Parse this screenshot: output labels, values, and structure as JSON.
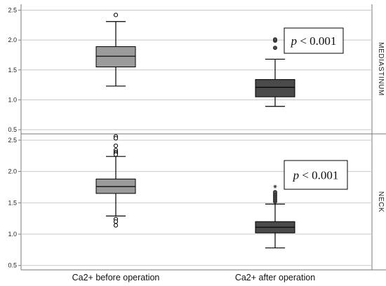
{
  "chart_data": {
    "type": "boxplot",
    "categories": [
      "Ca2+ before operation",
      "Ca2+ after operation"
    ],
    "y_ticks": [
      "0.5",
      "1.0",
      "1.5",
      "2.0",
      "2.5"
    ],
    "colors": {
      "before": "#9b9b9b",
      "after": "#4a4a4a",
      "grid": "#c8c8c8",
      "frame": "#7a7a7a"
    },
    "panels": [
      {
        "label": "MEDIASTINUM",
        "ylim": [
          0.43,
          2.6
        ],
        "p_value": {
          "symbol": "p",
          "text": " < 0.001"
        },
        "boxes": [
          {
            "category": "Ca2+ before operation",
            "min": 1.23,
            "q1": 1.55,
            "median": 1.73,
            "q3": 1.89,
            "max": 2.31,
            "outliers": [
              {
                "value": 2.42,
                "style": "hollow"
              }
            ]
          },
          {
            "category": "Ca2+ after operation",
            "min": 0.89,
            "q1": 1.05,
            "median": 1.21,
            "q3": 1.34,
            "max": 1.68,
            "outliers": [
              {
                "value": 1.87,
                "style": "filled"
              },
              {
                "value": 1.99,
                "style": "filled"
              },
              {
                "value": 2.01,
                "style": "filled"
              }
            ]
          }
        ]
      },
      {
        "label": "NECK",
        "ylim": [
          0.43,
          2.6
        ],
        "p_value": {
          "symbol": "p",
          "text": " < 0.001"
        },
        "boxes": [
          {
            "category": "Ca2+ before operation",
            "min": 1.29,
            "q1": 1.65,
            "median": 1.76,
            "q3": 1.88,
            "max": 2.24,
            "outliers": [
              {
                "value": 2.56,
                "style": "hollow"
              },
              {
                "value": 2.53,
                "style": "hollow"
              },
              {
                "value": 2.41,
                "style": "hollow"
              },
              {
                "value": 2.34,
                "style": "hollow"
              },
              {
                "value": 2.31,
                "style": "hollow"
              },
              {
                "value": 2.29,
                "style": "hollow"
              },
              {
                "value": 2.27,
                "style": "hollow"
              },
              {
                "value": 1.24,
                "style": "hollow"
              },
              {
                "value": 1.2,
                "style": "hollow"
              },
              {
                "value": 1.14,
                "style": "hollow"
              }
            ]
          },
          {
            "category": "Ca2+ after operation",
            "min": 0.78,
            "q1": 1.02,
            "median": 1.11,
            "q3": 1.2,
            "max": 1.48,
            "outliers": [
              {
                "value": 1.52,
                "style": "filled"
              },
              {
                "value": 1.55,
                "style": "filled"
              },
              {
                "value": 1.58,
                "style": "filled"
              },
              {
                "value": 1.61,
                "style": "filled"
              },
              {
                "value": 1.64,
                "style": "filled"
              },
              {
                "value": 1.67,
                "style": "filled"
              },
              {
                "value": 1.76,
                "style": "star"
              }
            ]
          }
        ]
      }
    ],
    "grid": true,
    "legend": "none"
  }
}
